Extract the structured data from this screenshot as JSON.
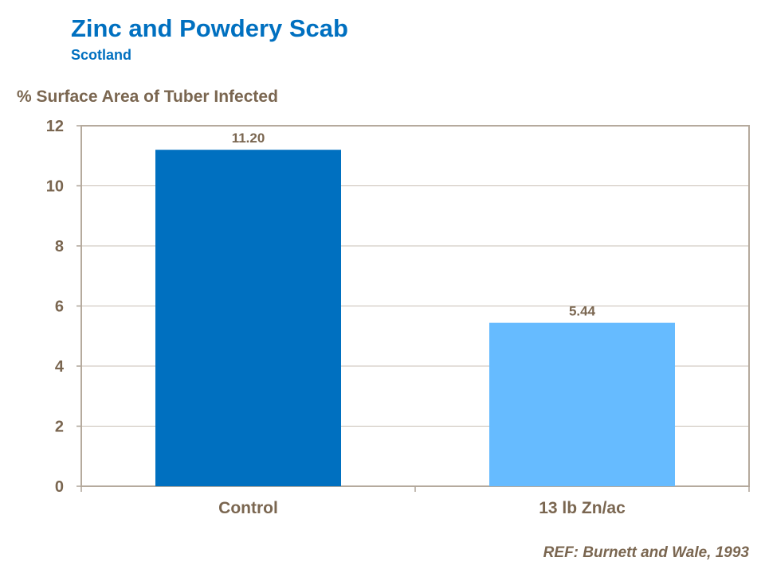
{
  "title": "Zinc and Powdery Scab",
  "subtitle": "Scotland",
  "reference": "REF: Burnett and Wale, 1993",
  "chart_data": {
    "type": "bar",
    "title": "Zinc and Powdery Scab",
    "subtitle": "Scotland",
    "ylabel": "%  Surface Area of Tuber Infected",
    "xlabel": "",
    "categories": [
      "Control",
      "13 lb Zn/ac"
    ],
    "values": [
      11.2,
      5.44
    ],
    "data_labels": [
      "11.20",
      "5.44"
    ],
    "colors": [
      "#0070C0",
      "#66BBFF"
    ],
    "ylim": [
      0,
      12
    ],
    "yticks": [
      0,
      2,
      4,
      6,
      8,
      10,
      12
    ],
    "grid": true,
    "legend": "none"
  }
}
